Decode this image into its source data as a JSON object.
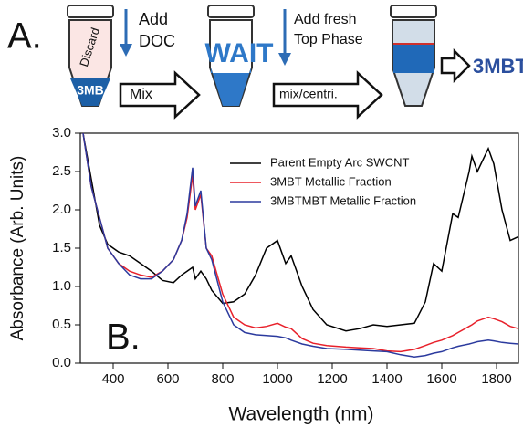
{
  "diagram": {
    "panel_label": "A.",
    "tube1_top": "Discard",
    "tube1_bottom": "3MB",
    "step1_line1": "Add",
    "step1_line2": "DOC",
    "arrow1": "Mix",
    "wait": "WAIT",
    "step2_line1": "Add fresh",
    "step2_line2": "Top Phase",
    "arrow2": "mix/centri.",
    "result": "3MBT"
  },
  "chart_data": {
    "type": "line",
    "panel_label": "B.",
    "x_label": "Wavelength (nm)",
    "y_label": "Absorbance (Arb. Units)",
    "x": [
      290,
      320,
      350,
      380,
      420,
      460,
      500,
      540,
      580,
      620,
      650,
      670,
      690,
      700,
      720,
      740,
      760,
      800,
      840,
      880,
      920,
      960,
      1000,
      1030,
      1050,
      1090,
      1130,
      1180,
      1250,
      1300,
      1350,
      1400,
      1450,
      1500,
      1540,
      1570,
      1600,
      1640,
      1660,
      1700,
      1710,
      1730,
      1770,
      1790,
      1820,
      1850,
      1880
    ],
    "series": [
      {
        "name": "Parent Empty Arc SWCNT",
        "color": "#000000",
        "values": [
          3.0,
          2.4,
          1.8,
          1.55,
          1.45,
          1.4,
          1.3,
          1.2,
          1.08,
          1.05,
          1.15,
          1.2,
          1.25,
          1.1,
          1.2,
          1.1,
          0.95,
          0.78,
          0.8,
          0.9,
          1.15,
          1.5,
          1.6,
          1.3,
          1.4,
          1.0,
          0.7,
          0.5,
          0.42,
          0.45,
          0.5,
          0.48,
          0.5,
          0.52,
          0.8,
          1.3,
          1.2,
          1.95,
          1.9,
          2.5,
          2.7,
          2.5,
          2.8,
          2.6,
          2.0,
          1.6,
          1.65
        ]
      },
      {
        "name": "3MBT Metallic Fraction",
        "color": "#e8202a",
        "values": [
          3.0,
          2.3,
          1.9,
          1.5,
          1.3,
          1.2,
          1.15,
          1.12,
          1.2,
          1.35,
          1.6,
          1.9,
          2.45,
          2.0,
          2.2,
          1.5,
          1.4,
          0.9,
          0.6,
          0.5,
          0.46,
          0.48,
          0.52,
          0.47,
          0.45,
          0.32,
          0.26,
          0.23,
          0.21,
          0.2,
          0.19,
          0.16,
          0.15,
          0.18,
          0.23,
          0.27,
          0.3,
          0.36,
          0.4,
          0.48,
          0.5,
          0.55,
          0.6,
          0.58,
          0.54,
          0.48,
          0.45
        ]
      },
      {
        "name": "3MBTMBT Metallic Fraction",
        "color": "#2b3a9e",
        "values": [
          3.0,
          2.3,
          1.9,
          1.5,
          1.3,
          1.15,
          1.1,
          1.1,
          1.2,
          1.35,
          1.6,
          1.95,
          2.55,
          2.05,
          2.25,
          1.5,
          1.35,
          0.8,
          0.5,
          0.4,
          0.37,
          0.36,
          0.35,
          0.33,
          0.3,
          0.25,
          0.22,
          0.19,
          0.18,
          0.17,
          0.16,
          0.15,
          0.11,
          0.08,
          0.1,
          0.13,
          0.15,
          0.2,
          0.22,
          0.25,
          0.26,
          0.28,
          0.3,
          0.29,
          0.27,
          0.26,
          0.25
        ]
      }
    ],
    "xlim": [
      280,
      1880
    ],
    "xticks": [
      400,
      600,
      800,
      1000,
      1200,
      1400,
      1600,
      1800
    ],
    "ylim": [
      0,
      3
    ],
    "yticks": [
      {
        "value": 0,
        "label": "0.0"
      },
      {
        "value": 0.5,
        "label": "0.5"
      },
      {
        "value": 1,
        "label": "1.0"
      },
      {
        "value": 1.5,
        "label": "1.5"
      },
      {
        "value": 2,
        "label": "2.0"
      },
      {
        "value": 2.5,
        "label": "2.5"
      },
      {
        "value": 3,
        "label": "3.0"
      }
    ],
    "legend": "upper right"
  }
}
